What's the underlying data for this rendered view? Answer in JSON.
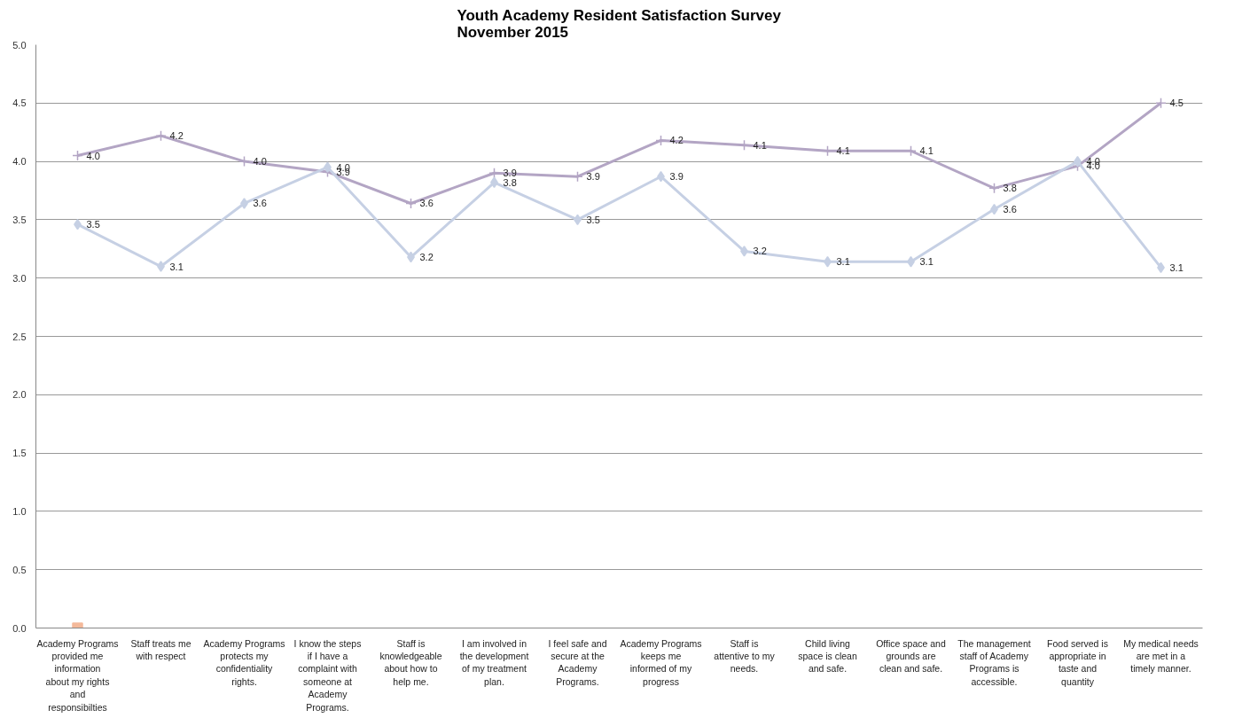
{
  "chart_data": {
    "type": "line",
    "title": "Youth Academy Resident Satisfaction Survey\nNovember 2015",
    "categories": [
      "Academy Programs provided me information about my rights and responsibilties",
      "Staff treats me with respect",
      "Academy Programs protects my confidentiality rights.",
      "I know the steps if I have a complaint with someone at Academy Programs.",
      "Staff is knowledgeable about how to help me.",
      "I am involved in the development of my treatment plan.",
      "I feel safe and secure at the Academy Programs.",
      "Academy Programs keeps me informed of my progress",
      "Staff is attentive to my needs.",
      "Child living space is clean and safe.",
      "Office space and grounds are clean and safe.",
      "The management staff of Academy Programs is accessible.",
      "Food served is appropriate in taste and quantity",
      "My medical needs are met in a timely manner."
    ],
    "series": [
      {
        "color": "#b3a5c4",
        "marker": "cross",
        "values": [
          4.05,
          4.22,
          4.0,
          3.91,
          3.64,
          3.9,
          3.87,
          4.18,
          4.14,
          4.09,
          4.09,
          3.77,
          3.96,
          4.5
        ],
        "value_labels": [
          "4.0",
          "4.2",
          "4.0",
          "3.9",
          "3.6",
          "3.9",
          "3.9",
          "4.2",
          "4.1",
          "4.1",
          "4.1",
          "3.8",
          "4.0",
          "4.5"
        ]
      },
      {
        "color": "#c6d0e4",
        "marker": "diamond",
        "values": [
          3.46,
          3.1,
          3.64,
          3.95,
          3.18,
          3.82,
          3.5,
          3.87,
          3.23,
          3.14,
          3.14,
          3.59,
          4.0,
          3.09
        ],
        "value_labels": [
          "3.5",
          "3.1",
          "3.6",
          "4.0",
          "3.2",
          "3.8",
          "3.5",
          "3.9",
          "3.2",
          "3.1",
          "3.1",
          "3.6",
          "4.0",
          "3.1"
        ]
      },
      {
        "color": "#f4b99a",
        "marker": "square",
        "values": [
          0,
          null,
          null,
          null,
          null,
          null,
          null,
          null,
          null,
          null,
          null,
          null,
          null,
          null
        ]
      }
    ],
    "ylim": [
      0,
      5
    ],
    "yticks": [
      {
        "value": 0,
        "label": "0.0"
      },
      {
        "value": 0.5,
        "label": "0.5"
      },
      {
        "value": 1,
        "label": "1.0"
      },
      {
        "value": 1.5,
        "label": "1.5"
      },
      {
        "value": 2,
        "label": "2.0"
      },
      {
        "value": 2.5,
        "label": "2.5"
      },
      {
        "value": 3,
        "label": "3.0"
      },
      {
        "value": 3.5,
        "label": "3.5"
      },
      {
        "value": 4,
        "label": "4.0"
      },
      {
        "value": 4.5,
        "label": "4.5"
      },
      {
        "value": 5,
        "label": "5.0"
      }
    ],
    "grid": "y"
  }
}
